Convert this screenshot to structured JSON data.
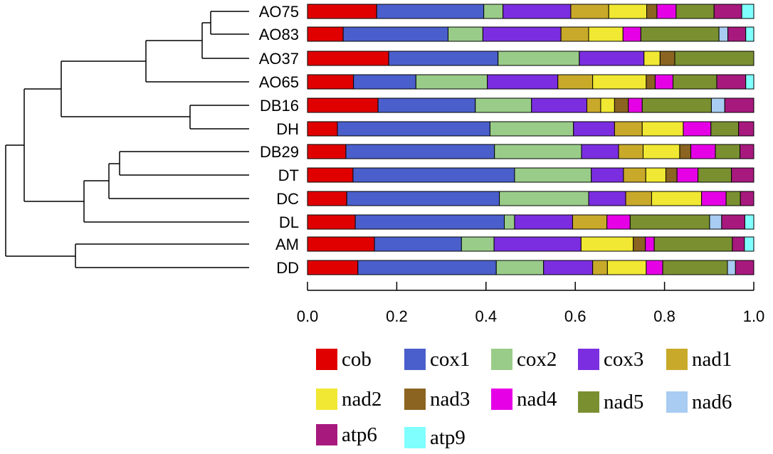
{
  "chart_data": {
    "type": "bar",
    "orientation": "horizontal-stacked",
    "title": "",
    "xlabel": "",
    "ylabel": "",
    "xlim": [
      0.0,
      1.0
    ],
    "x_ticks": [
      "0.0",
      "0.2",
      "0.4",
      "0.6",
      "0.8",
      "1.0"
    ],
    "categories": [
      "AO75",
      "AO83",
      "AO37",
      "AO65",
      "DB16",
      "DH",
      "DB29",
      "DT",
      "DC",
      "DL",
      "AM",
      "DD"
    ],
    "series": [
      {
        "name": "cob",
        "color": "#e00000",
        "values": [
          0.155,
          0.08,
          0.182,
          0.103,
          0.158,
          0.067,
          0.086,
          0.102,
          0.088,
          0.107,
          0.15,
          0.113
        ]
      },
      {
        "name": "cox1",
        "color": "#4a5fcb",
        "values": [
          0.24,
          0.235,
          0.245,
          0.14,
          0.218,
          0.342,
          0.333,
          0.362,
          0.342,
          0.334,
          0.195,
          0.31
        ]
      },
      {
        "name": "cox2",
        "color": "#99cc88",
        "values": [
          0.043,
          0.078,
          0.182,
          0.16,
          0.126,
          0.187,
          0.195,
          0.172,
          0.2,
          0.023,
          0.073,
          0.106
        ]
      },
      {
        "name": "cox3",
        "color": "#7b2ee0",
        "values": [
          0.152,
          0.175,
          0.145,
          0.158,
          0.124,
          0.092,
          0.083,
          0.072,
          0.083,
          0.13,
          0.195,
          0.11
        ]
      },
      {
        "name": "nad1",
        "color": "#c9a92a",
        "values": [
          0.085,
          0.062,
          0.0,
          0.078,
          0.031,
          0.062,
          0.055,
          0.05,
          0.058,
          0.077,
          0.0,
          0.033
        ]
      },
      {
        "name": "nad2",
        "color": "#f0e832",
        "values": [
          0.085,
          0.077,
          0.036,
          0.12,
          0.031,
          0.092,
          0.082,
          0.045,
          0.112,
          0.0,
          0.117,
          0.087
        ]
      },
      {
        "name": "nad3",
        "color": "#8a6420",
        "values": [
          0.023,
          0.0,
          0.033,
          0.02,
          0.031,
          0.0,
          0.025,
          0.025,
          0.0,
          0.0,
          0.027,
          0.0
        ]
      },
      {
        "name": "nad4",
        "color": "#e600e6",
        "values": [
          0.043,
          0.04,
          0.0,
          0.04,
          0.031,
          0.062,
          0.055,
          0.047,
          0.055,
          0.052,
          0.02,
          0.037
        ]
      },
      {
        "name": "nad5",
        "color": "#7a8f30",
        "values": [
          0.085,
          0.175,
          0.177,
          0.098,
          0.155,
          0.062,
          0.055,
          0.075,
          0.032,
          0.178,
          0.175,
          0.145
        ]
      },
      {
        "name": "nad6",
        "color": "#a8ccf2",
        "values": [
          0.0,
          0.02,
          0.0,
          0.0,
          0.03,
          0.0,
          0.0,
          0.0,
          0.0,
          0.027,
          0.0,
          0.018
        ]
      },
      {
        "name": "atp6",
        "color": "#a8197e",
        "values": [
          0.062,
          0.04,
          0.0,
          0.065,
          0.065,
          0.034,
          0.031,
          0.05,
          0.03,
          0.052,
          0.027,
          0.041
        ]
      },
      {
        "name": "atp9",
        "color": "#80ffff",
        "values": [
          0.027,
          0.018,
          0.0,
          0.018,
          0.0,
          0.0,
          0.0,
          0.0,
          0.0,
          0.02,
          0.021,
          0.0
        ]
      }
    ],
    "legend": {
      "placement": "bottom",
      "entries": [
        "cob",
        "cox1",
        "cox2",
        "cox3",
        "nad1",
        "nad2",
        "nad3",
        "nad4",
        "nad5",
        "nad6",
        "atp6",
        "atp9"
      ]
    },
    "dendrogram": "((((AO75,AO83),AO37),AO65),(DB16,DH)),(((DB29,DT),DC),DL)),(AM,DD)"
  }
}
